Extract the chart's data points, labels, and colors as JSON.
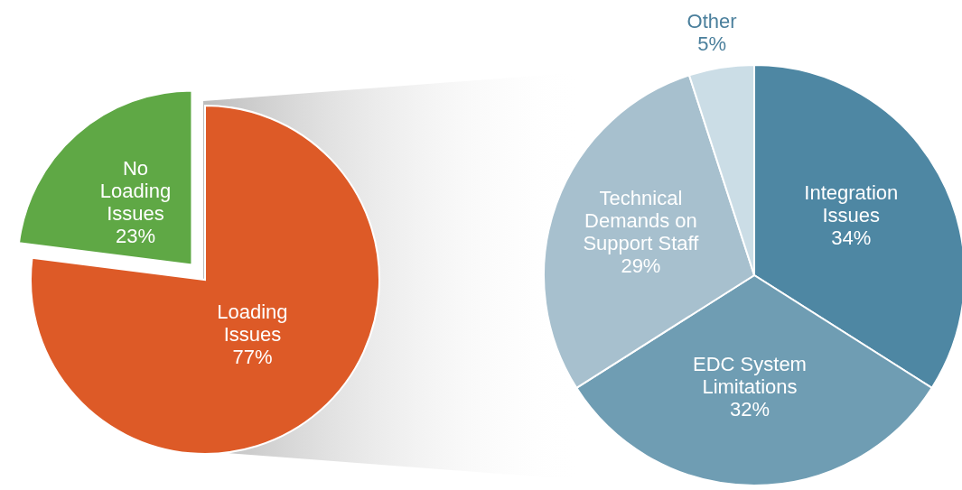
{
  "chart_data": [
    {
      "type": "pie",
      "categories": [
        "Loading Issues",
        "No Loading Issues"
      ],
      "values": [
        77,
        23
      ],
      "colors": [
        "#dd5a27",
        "#5fa845"
      ],
      "value_labels": [
        "77%",
        "23%"
      ]
    },
    {
      "type": "pie",
      "categories": [
        "Integration Issues",
        "EDC System Limitations",
        "Technical Demands on Support Staff",
        "Other"
      ],
      "values": [
        34,
        32,
        29,
        5
      ],
      "colors": [
        "#4e87a3",
        "#6f9db3",
        "#a7c0ce",
        "#cbdde6"
      ],
      "value_labels": [
        "34%",
        "32%",
        "29%",
        "5%"
      ]
    }
  ]
}
